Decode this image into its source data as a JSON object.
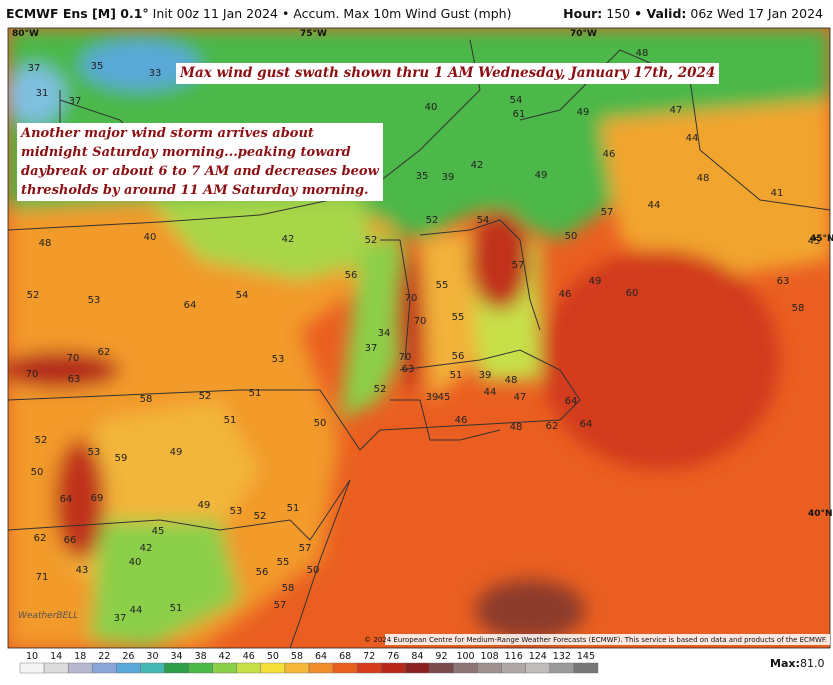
{
  "header": {
    "model": "ECMWF Ens [M] 0.1°",
    "product": "Init 00z 11 Jan 2024 • Accum. Max 10m Wind Gust (mph)",
    "hour_label": "Hour:",
    "hour": "150",
    "valid_label": "• Valid:",
    "valid": "06z Wed 17 Jan 2024"
  },
  "annotations": {
    "swath": "Max wind gust swath shown thru 1 AM Wednesday, January 17th, 2024",
    "storm": "Another major wind storm arrives about midnight Saturday morning...peaking toward daybreak or about 6 to 7 AM and decreases beow thresholds by around 11 AM Saturday morning."
  },
  "coordinates": [
    "80°W",
    "75°W",
    "70°W",
    "45°N",
    "40°N"
  ],
  "map_labels": [
    37,
    35,
    33,
    31,
    37,
    40,
    48,
    48,
    54,
    61,
    49,
    47,
    44,
    46,
    42,
    49,
    35,
    39,
    48,
    41,
    57,
    44,
    48,
    40,
    42,
    52,
    52,
    54,
    50,
    45,
    56,
    52,
    53,
    64,
    54,
    70,
    70,
    55,
    57,
    49,
    46,
    60,
    63,
    58,
    62,
    70,
    70,
    63,
    58,
    52,
    53,
    51,
    34,
    37,
    70,
    63,
    55,
    56,
    51,
    39,
    48,
    52,
    39,
    45,
    44,
    47,
    64,
    62,
    64,
    52,
    53,
    59,
    49,
    51,
    50,
    46,
    48,
    50,
    69,
    64,
    49,
    53,
    52,
    51,
    62,
    66,
    42,
    40,
    45,
    43,
    71,
    44,
    37,
    51,
    57,
    55,
    56,
    50,
    58,
    57
  ],
  "logo": "WeatherBELL",
  "copyright": "© 2024 European Centre for Medium-Range Weather Forecasts (ECMWF). This service is based on data and products of the ECMWF.",
  "colorbar": {
    "labels": [
      10,
      14,
      18,
      22,
      26,
      30,
      34,
      38,
      42,
      46,
      50,
      58,
      64,
      68,
      72,
      76,
      84,
      92,
      100,
      108,
      116,
      124,
      132,
      145
    ]
  },
  "max": {
    "label": "Max:",
    "value": "81.0"
  }
}
